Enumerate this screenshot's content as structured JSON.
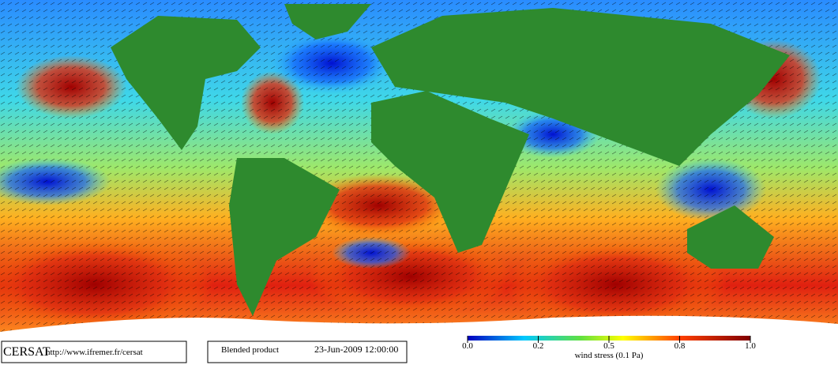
{
  "header": {
    "logo": "CERSAT",
    "url": "http://www.ifremer.fr/cersat",
    "product": "Blended product",
    "date": "23-Jun-2009 12:00:00"
  },
  "colorbar": {
    "label": "wind stress (0.1 Pa)",
    "ticks": [
      {
        "value": 0,
        "label": "0.0"
      },
      {
        "value": 0.2,
        "label": "0.2"
      },
      {
        "value": 0.5,
        "label": "0.5"
      },
      {
        "value": 0.8,
        "label": "0.8"
      },
      {
        "value": 1,
        "label": "1.0"
      }
    ]
  }
}
